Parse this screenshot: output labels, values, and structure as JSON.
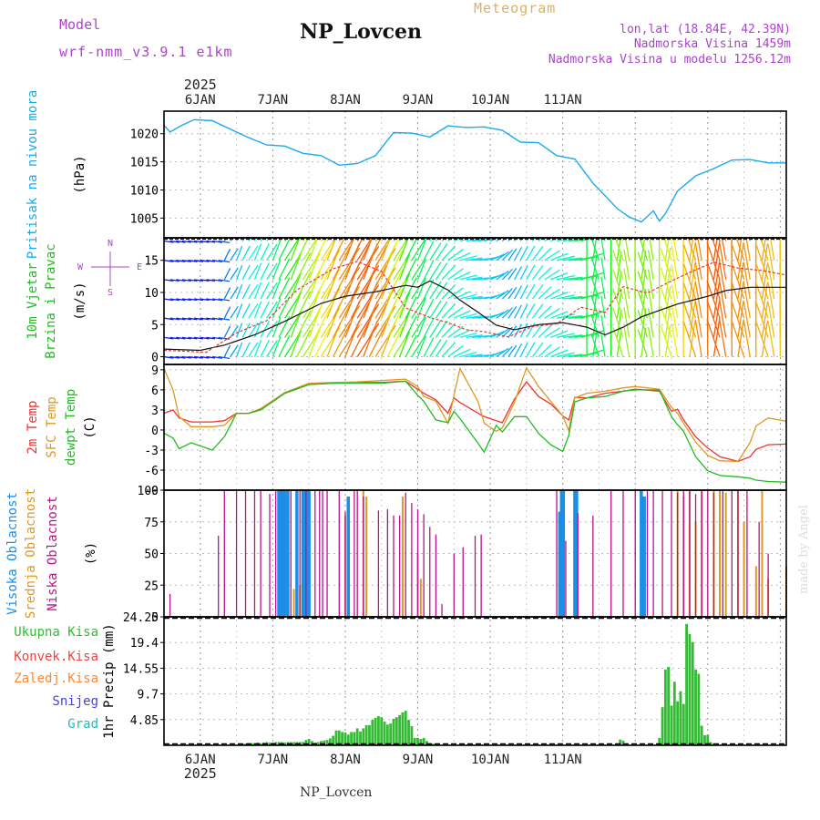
{
  "header": {
    "model_label": "Model",
    "model_name": "wrf-nmm_v3.9.1 e1km",
    "station": "NP_Lovcen",
    "product": "Meteogram",
    "lonlat": "lon,lat (18.84E, 42.39N)",
    "elevation": "Nadmorska Visina 1459m",
    "model_elevation": "Nadmorska Visina u modelu 1256.12m",
    "footer_station": "NP_Lovcen",
    "watermark": "made by Angel"
  },
  "colors": {
    "pressure": "#1aaaee",
    "temp2m": "#ee3333",
    "sfc_temp": "#dd9922",
    "dewpt": "#22bb22",
    "high_cloud": "#1a8fe8",
    "mid_cloud": "#dd9922",
    "low_cloud": "#bb1188",
    "total_precip": "#33bb33",
    "conv_precip": "#ee4444",
    "frozen_precip": "#ff8833",
    "snow": "#4444dd",
    "hail": "#22bbbb",
    "header_purple": "#aa44cc",
    "meteogram_gold": "#e0b060"
  },
  "chart_data": [
    {
      "type": "line",
      "x_unit": "hours since 2025-01-05 12Z",
      "date_ticks": [
        "6JAN",
        "7JAN",
        "8JAN",
        "9JAN",
        "10JAN",
        "11JAN"
      ],
      "year_label": "2025",
      "title": "",
      "ylabel_lines": [
        "Pritisak na nivou mora"
      ],
      "unit": "(hPa)",
      "yticks": [
        1005,
        1010,
        1015,
        1020
      ],
      "ylim": [
        1001.5,
        1024
      ],
      "series": [
        {
          "name": "Pritisak na nivou mora",
          "x": [
            0,
            2,
            6,
            10,
            16,
            22,
            28,
            34,
            40,
            46,
            52,
            58,
            64,
            70,
            76,
            82,
            88,
            94,
            100,
            106,
            112,
            118,
            124,
            130,
            136,
            142,
            146,
            150,
            154,
            158,
            162,
            164,
            166,
            170,
            176,
            182,
            188,
            194,
            200,
            206
          ],
          "y": [
            1021.5,
            1020.3,
            1021.5,
            1022.5,
            1022.3,
            1020.8,
            1019.3,
            1018.0,
            1017.8,
            1016.5,
            1016.1,
            1014.4,
            1014.7,
            1016.1,
            1020.2,
            1020.1,
            1019.4,
            1021.4,
            1021.1,
            1021.2,
            1020.6,
            1018.5,
            1018.4,
            1016.1,
            1015.5,
            1011.2,
            1009.0,
            1006.7,
            1005.2,
            1004.3,
            1006.3,
            1004.5,
            1005.8,
            1009.8,
            1012.5,
            1013.8,
            1015.3,
            1015.4,
            1014.8,
            1014.8
          ]
        }
      ]
    },
    {
      "type": "line",
      "x_unit": "hours since 2025-01-05 12Z",
      "title": "",
      "ylabel_lines": [
        "10m Vjetar",
        "Brzina i Pravac"
      ],
      "unit": "(m/s)",
      "yticks": [
        0,
        5,
        10,
        15
      ],
      "ylim": [
        -1.2,
        18.5
      ],
      "compass_labels": [
        "N",
        "E",
        "S",
        "W"
      ],
      "series": [
        {
          "name": "",
          "x": [
            0,
            12,
            20,
            30,
            40,
            52,
            60,
            70,
            80,
            84,
            88,
            94,
            98,
            104,
            110,
            116,
            124,
            132,
            140,
            146,
            152,
            158,
            164,
            170,
            180,
            186,
            194,
            206
          ],
          "y": [
            1.2,
            1.0,
            1.8,
            3.4,
            5.5,
            8.3,
            9.4,
            10.1,
            11.1,
            10.8,
            11.8,
            10.4,
            8.8,
            6.9,
            4.9,
            4.2,
            5.0,
            5.3,
            4.6,
            3.4,
            4.6,
            6.2,
            7.2,
            8.2,
            9.4,
            10.3,
            10.8,
            10.8
          ]
        },
        {
          "name": "",
          "x": [
            0,
            14,
            24,
            34,
            44,
            56,
            64,
            72,
            80,
            88,
            94,
            100,
            106,
            114,
            122,
            130,
            138,
            146,
            152,
            160,
            168,
            174,
            182,
            190,
            198,
            206
          ],
          "y": [
            1.0,
            0.7,
            3.7,
            5.6,
            10.4,
            13.7,
            14.8,
            13.3,
            7.6,
            6.1,
            5.3,
            4.2,
            3.9,
            3.1,
            4.7,
            5.1,
            7.7,
            6.9,
            10.9,
            9.9,
            11.8,
            13.1,
            14.7,
            13.8,
            13.4,
            12.7
          ]
        }
      ]
    },
    {
      "type": "line",
      "x_unit": "hours since 2025-01-05 12Z",
      "title": "",
      "ylabel_lines": [
        "2m Temp",
        "SFC Temp",
        "dewpt Temp"
      ],
      "unit": "(C)",
      "yticks": [
        -9,
        -6,
        -3,
        0,
        3,
        6,
        9
      ],
      "ylim": [
        -9,
        9.8
      ],
      "series": [
        {
          "name": "2m Temp",
          "x": [
            0,
            3,
            5,
            9,
            16,
            20,
            24,
            28,
            32,
            40,
            48,
            56,
            64,
            72,
            80,
            84,
            86,
            90,
            94,
            96,
            98,
            104,
            106,
            110,
            112,
            116,
            120,
            124,
            128,
            132,
            134,
            136,
            140,
            146,
            152,
            156,
            164,
            168,
            170,
            172,
            176,
            180,
            184,
            190,
            194,
            196,
            200,
            206
          ],
          "y": [
            2.5,
            3.0,
            1.8,
            1.2,
            1.2,
            1.4,
            2.5,
            2.5,
            3.0,
            5.5,
            6.8,
            7.0,
            7.1,
            7.1,
            7.3,
            6.1,
            5.5,
            4.5,
            2.5,
            4.8,
            4.1,
            2.5,
            2.0,
            1.4,
            1.1,
            4.6,
            7.2,
            5.0,
            3.9,
            2.1,
            1.5,
            4.9,
            4.8,
            5.5,
            5.8,
            6.1,
            5.8,
            2.8,
            3.1,
            1.5,
            -1.0,
            -2.7,
            -4.0,
            -4.7,
            -4.0,
            -2.9,
            -2.2,
            -2.1
          ]
        },
        {
          "name": "SFC Temp",
          "x": [
            0,
            3,
            5,
            9,
            16,
            20,
            24,
            28,
            32,
            40,
            48,
            56,
            64,
            72,
            80,
            84,
            86,
            90,
            94,
            96,
            98,
            104,
            106,
            110,
            112,
            116,
            120,
            124,
            128,
            132,
            134,
            136,
            140,
            146,
            152,
            156,
            164,
            168,
            170,
            172,
            176,
            180,
            184,
            190,
            194,
            196,
            200,
            206
          ],
          "y": [
            9.2,
            6.0,
            2.0,
            0.5,
            0.5,
            0.7,
            2.5,
            2.5,
            3.2,
            5.6,
            7.0,
            7.1,
            7.2,
            7.4,
            7.6,
            6.5,
            5.0,
            4.3,
            1.0,
            5.2,
            9.2,
            4.2,
            1.0,
            -0.2,
            0.3,
            4.1,
            9.3,
            6.5,
            4.3,
            2.1,
            -0.1,
            4.8,
            5.5,
            5.8,
            6.3,
            6.5,
            6.1,
            3.4,
            2.5,
            1.0,
            -1.8,
            -3.8,
            -4.6,
            -4.7,
            -1.9,
            0.6,
            1.8,
            1.3
          ]
        },
        {
          "name": "dewpt Temp",
          "x": [
            0,
            3,
            5,
            9,
            16,
            20,
            24,
            28,
            32,
            40,
            48,
            56,
            64,
            72,
            80,
            84,
            86,
            90,
            94,
            96,
            98,
            104,
            106,
            110,
            112,
            116,
            120,
            124,
            128,
            132,
            134,
            136,
            140,
            146,
            152,
            156,
            164,
            168,
            170,
            172,
            176,
            180,
            184,
            190,
            194,
            196,
            200,
            206
          ],
          "y": [
            -0.5,
            -1.2,
            -2.8,
            -1.9,
            -3.0,
            -1.0,
            2.5,
            2.5,
            3.0,
            5.5,
            6.8,
            7.0,
            7.0,
            7.0,
            7.3,
            5.2,
            4.3,
            1.5,
            1.1,
            2.8,
            1.7,
            -2.0,
            -3.3,
            0.7,
            -0.3,
            2.0,
            2.0,
            -0.5,
            -2.2,
            -3.2,
            -0.8,
            4.2,
            4.8,
            5.0,
            5.8,
            6.0,
            6.0,
            2.0,
            0.8,
            -0.2,
            -4.0,
            -6.1,
            -6.8,
            -7.0,
            -7.2,
            -7.5,
            -7.7,
            -7.8
          ]
        }
      ]
    },
    {
      "type": "bar",
      "x_unit": "hours since 2025-01-05 12Z",
      "title": "",
      "ylabel_lines": [
        "Visoka Oblacnost",
        "Srednja Oblacnost",
        "Niska Oblacnost"
      ],
      "unit": "(%)",
      "yticks": [
        0,
        25,
        50,
        75,
        100
      ],
      "ylim": [
        0,
        100
      ],
      "series": [
        {
          "name": "Visoka Oblacnost",
          "x": [
            38,
            38.6,
            39.2,
            40,
            41,
            44,
            46,
            47,
            48,
            61,
            131,
            131.6,
            132.2,
            136,
            136.6,
            158,
            159
          ],
          "y": [
            100,
            100,
            100,
            100,
            100,
            100,
            100,
            100,
            100,
            95,
            83,
            100,
            100,
            100,
            100,
            100,
            95
          ]
        },
        {
          "name": "Srednja Oblacnost",
          "x": [
            43,
            45,
            60,
            66,
            67,
            79,
            84,
            85,
            170,
            172,
            174,
            176,
            178,
            182,
            184,
            186,
            190,
            192,
            196,
            198,
            200,
            206
          ],
          "y": [
            22,
            25,
            80,
            100,
            95,
            95,
            50,
            30,
            100,
            95,
            100,
            75,
            100,
            100,
            100,
            98,
            100,
            75,
            40,
            100,
            30,
            40
          ]
        },
        {
          "name": "Niska Oblacnost",
          "x": [
            2,
            18,
            20,
            24,
            27,
            30,
            32,
            35,
            37,
            42,
            45,
            47,
            50,
            51.5,
            52.5,
            54,
            58,
            60,
            63,
            64,
            66,
            71,
            74,
            76,
            78,
            80,
            82,
            84,
            86,
            88,
            90,
            92,
            96,
            99,
            103,
            105,
            130,
            133,
            137,
            142,
            148,
            152,
            156,
            160,
            162,
            165,
            168,
            170,
            172,
            174,
            176,
            178,
            180,
            182,
            185,
            188,
            190,
            193,
            197,
            200
          ],
          "y": [
            18,
            64,
            100,
            100,
            100,
            100,
            100,
            97,
            100,
            100,
            100,
            100,
            100,
            100,
            100,
            100,
            100,
            83,
            100,
            100,
            95,
            84,
            85,
            80,
            80,
            98,
            90,
            85,
            81,
            71,
            65,
            10,
            50,
            55,
            64,
            65,
            100,
            60,
            82,
            80,
            100,
            100,
            100,
            100,
            100,
            100,
            100,
            98,
            100,
            100,
            97,
            100,
            100,
            98,
            100,
            100,
            100,
            100,
            75,
            50
          ]
        }
      ]
    },
    {
      "type": "bar",
      "x_unit": "hours since 2025-01-05 12Z",
      "title": "",
      "ylabel_lines": [
        "1hr Precip (mm)"
      ],
      "legend": [
        "Ukupna Kisa",
        "Konvek.Kisa",
        "Zaledj.Kisa",
        "Snijeg",
        "Grad"
      ],
      "yticks": [
        "4.85",
        "9.7",
        "14.55",
        "19.4",
        "24.25"
      ],
      "ylim": [
        0,
        24.25
      ],
      "series": [
        {
          "name": "Ukupna Kisa",
          "x": [
            26,
            27,
            28,
            29,
            30,
            31,
            32,
            33,
            34,
            35,
            36,
            37,
            38,
            39,
            40,
            41,
            42,
            43,
            44,
            45,
            46,
            47,
            48,
            49,
            50,
            51,
            52,
            53,
            54,
            55,
            56,
            57,
            58,
            59,
            60,
            61,
            62,
            63,
            64,
            65,
            66,
            67,
            68,
            69,
            70,
            71,
            72,
            73,
            74,
            75,
            76,
            77,
            78,
            79,
            80,
            81,
            82,
            83,
            84,
            85,
            86,
            87,
            88,
            89,
            151,
            152,
            164,
            165,
            166,
            167,
            168,
            169,
            170,
            171,
            172,
            173,
            174,
            175,
            176,
            177,
            178,
            179,
            180,
            181,
            182
          ],
          "y": [
            0.3,
            0.3,
            0.4,
            0.4,
            0.4,
            0.5,
            0.4,
            0.5,
            0.6,
            0.5,
            0.5,
            0.6,
            0.6,
            0.6,
            0.5,
            0.6,
            0.6,
            0.6,
            0.6,
            0.6,
            0.6,
            1.0,
            1.2,
            0.8,
            0.5,
            0.6,
            0.8,
            0.9,
            1.0,
            1.3,
            1.8,
            2.8,
            2.8,
            2.5,
            2.4,
            2.0,
            2.5,
            2.5,
            3.2,
            2.6,
            3.2,
            3.8,
            3.8,
            4.8,
            5.2,
            5.5,
            5.3,
            4.5,
            3.9,
            4.1,
            5.0,
            5.3,
            5.7,
            6.2,
            6.5,
            4.8,
            3.6,
            1.4,
            1.4,
            1.2,
            1.4,
            0.8,
            0.4,
            0.3,
            1.1,
            0.9,
            1.4,
            7.2,
            14.3,
            14.8,
            7.5,
            12.0,
            8.3,
            10.2,
            7.8,
            22.9,
            21.0,
            19.5,
            14.3,
            13.5,
            3.7,
            1.9,
            2.0,
            0.6,
            0.3
          ]
        },
        {
          "name": "Konvek.Kisa",
          "x": [
            69,
            70,
            71,
            72
          ],
          "y": [
            0.3,
            0.3,
            0.3,
            0.2
          ]
        },
        {
          "name": "Zaledj.Kisa",
          "x": [],
          "y": []
        },
        {
          "name": "Snijeg",
          "x": [
            178,
            179
          ],
          "y": [
            0.2,
            0.2
          ]
        },
        {
          "name": "Grad",
          "x": [],
          "y": []
        }
      ]
    }
  ]
}
